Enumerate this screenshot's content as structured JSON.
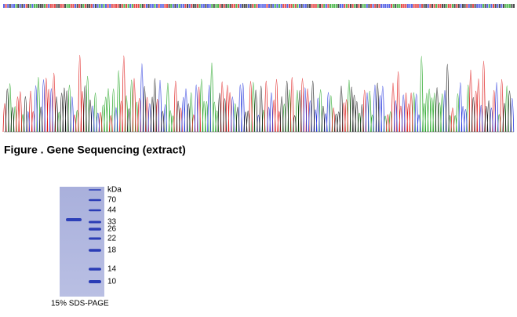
{
  "caption": "Figure . Gene Sequencing (extract)",
  "gel": {
    "unit": "kDa",
    "markers": [
      70,
      44,
      33,
      26,
      22,
      18,
      14,
      10
    ],
    "label": "15% SDS-PAGE"
  }
}
